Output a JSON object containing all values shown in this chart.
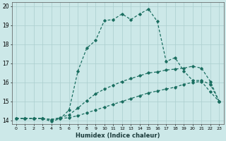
{
  "xlabel": "Humidex (Indice chaleur)",
  "bg_color": "#cce8e8",
  "grid_color": "#aacece",
  "line_color": "#1a6e60",
  "xlim": [
    -0.5,
    23.5
  ],
  "ylim": [
    13.8,
    20.2
  ],
  "yticks": [
    14,
    15,
    16,
    17,
    18,
    19,
    20
  ],
  "xticks": [
    0,
    1,
    2,
    3,
    4,
    5,
    6,
    7,
    8,
    9,
    10,
    11,
    12,
    13,
    14,
    15,
    16,
    17,
    18,
    19,
    20,
    21,
    22,
    23
  ],
  "line1_x": [
    0,
    1,
    2,
    3,
    4,
    5,
    6,
    7,
    8,
    9,
    10,
    11,
    12,
    13,
    14,
    15,
    16,
    17,
    18,
    19,
    20,
    21,
    22,
    23
  ],
  "line1_y": [
    14.1,
    14.1,
    14.1,
    14.1,
    14.05,
    14.1,
    14.15,
    14.25,
    14.4,
    14.55,
    14.7,
    14.85,
    15.0,
    15.15,
    15.3,
    15.45,
    15.55,
    15.65,
    15.75,
    15.9,
    16.0,
    16.05,
    15.5,
    15.0
  ],
  "line2_x": [
    0,
    1,
    2,
    3,
    4,
    5,
    6,
    7,
    8,
    9,
    10,
    11,
    12,
    13,
    14,
    15,
    16,
    17,
    18,
    19,
    20,
    21,
    22,
    23
  ],
  "line2_y": [
    14.1,
    14.1,
    14.1,
    14.1,
    14.05,
    14.15,
    14.3,
    14.65,
    15.05,
    15.4,
    15.65,
    15.85,
    16.05,
    16.2,
    16.35,
    16.5,
    16.55,
    16.65,
    16.7,
    16.75,
    16.85,
    16.75,
    16.05,
    15.0
  ],
  "line3_x": [
    0,
    1,
    2,
    3,
    4,
    5,
    6,
    7,
    8,
    9,
    10,
    11,
    12,
    13,
    14,
    15,
    16,
    17,
    18,
    19,
    20,
    21,
    22,
    23
  ],
  "line3_y": [
    14.1,
    14.1,
    14.1,
    14.1,
    13.95,
    14.1,
    14.55,
    16.6,
    17.8,
    18.2,
    19.25,
    19.3,
    19.6,
    19.3,
    19.6,
    19.85,
    19.2,
    17.1,
    17.3,
    16.6,
    16.1,
    16.1,
    15.9,
    15.0
  ],
  "marker": "D",
  "markersize": 1.8,
  "linewidth": 0.9
}
